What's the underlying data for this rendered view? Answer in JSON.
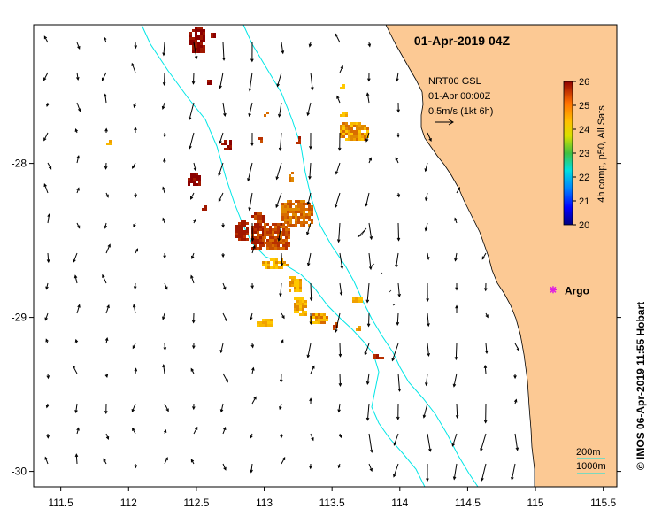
{
  "map": {
    "title": "01-Apr-2019 04Z",
    "x_ticks": [
      "111.5",
      "112",
      "112.5",
      "113",
      "113.5",
      "114",
      "114.5",
      "115",
      "115.5"
    ],
    "x_tick_values": [
      111.5,
      112,
      112.5,
      113,
      113.5,
      114,
      114.5,
      115,
      115.5
    ],
    "y_ticks": [
      "-28",
      "-29",
      "-30"
    ],
    "y_tick_values": [
      -28,
      -29,
      -30
    ],
    "lon_range": [
      111.3,
      115.6
    ],
    "lat_range": [
      -30.1,
      -27.1
    ],
    "legend": {
      "line1": "NRT00 GSL",
      "line2": "01-Apr 00:00Z",
      "line3": "0.5m/s (1kt 6h)"
    },
    "colorbar": {
      "ticks": [
        "26",
        "25",
        "24",
        "23",
        "22",
        "21",
        "20"
      ],
      "label": "4h comp, p50, All Sats",
      "min": 20,
      "max": 26
    },
    "marker": {
      "label": "Argo",
      "lon": 115.13,
      "lat": -28.82,
      "color": "#e020e0"
    },
    "depth_legend": {
      "line1": "200m",
      "line2": "1000m"
    },
    "credit": "© IMOS 06-Apr-2019 11:55 Hobart",
    "colors": {
      "land": "#fcc994",
      "isobath": "#00e6e6",
      "background": "#ffffff"
    }
  }
}
